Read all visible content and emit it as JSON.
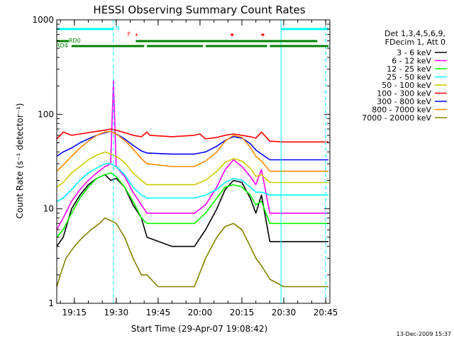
{
  "chart_data": {
    "type": "line",
    "title": "HESSI Observing Summary Count Rates",
    "xlabel": "Start Time (29-Apr-07 19:08:42)",
    "ylabel": "Count Rate (s⁻¹ detector⁻¹)",
    "yscale": "log",
    "ylim": [
      1,
      1000
    ],
    "xlim": [
      "19:08:42",
      "20:46:30"
    ],
    "x_ticks": [
      "19:15",
      "19:30",
      "19:45",
      "20:00",
      "20:15",
      "20:30",
      "20:45"
    ],
    "y_ticks": [
      "1",
      "10",
      "100",
      "1000"
    ],
    "grid": false,
    "legend_position": "right",
    "legend_header": [
      "Det 1,3,4,5,6,9,",
      "FDecim 1, Att 0"
    ],
    "series": [
      {
        "name": "3 - 6 keV",
        "color": "#000000",
        "x": [
          "19:08:42",
          "19:11",
          "19:14",
          "19:17",
          "19:20",
          "19:23",
          "19:26",
          "19:28",
          "19:30",
          "19:33",
          "19:36",
          "19:39",
          "19:41",
          "19:50",
          "19:58",
          "20:02",
          "20:06",
          "20:09",
          "20:12",
          "20:15",
          "20:18",
          "20:20",
          "20:22",
          "20:25",
          "20:30",
          "20:46"
        ],
        "values": [
          4,
          5,
          10,
          14,
          18,
          21,
          23,
          20,
          21,
          17,
          11,
          8,
          5,
          4,
          4,
          6,
          10,
          16,
          20,
          19,
          13,
          9,
          14,
          4.5,
          4.5,
          4.5
        ]
      },
      {
        "name": "6 - 12 keV",
        "color": "#ff00ff",
        "x": [
          "19:08:42",
          "19:11",
          "19:14",
          "19:17",
          "19:20",
          "19:23",
          "19:26",
          "19:28",
          "19:29",
          "19:30",
          "19:33",
          "19:36",
          "19:39",
          "19:41",
          "19:50",
          "19:58",
          "20:02",
          "20:06",
          "20:09",
          "20:12",
          "20:15",
          "20:18",
          "20:20",
          "20:22",
          "20:25",
          "20:30",
          "20:46"
        ],
        "values": [
          6,
          8,
          12,
          16,
          20,
          24,
          28,
          30,
          230,
          28,
          22,
          15,
          11,
          9,
          9,
          9,
          11,
          17,
          26,
          33,
          28,
          22,
          18,
          26,
          9,
          9,
          9
        ]
      },
      {
        "name": "12 - 25 keV",
        "color": "#00ff00",
        "x": [
          "19:08:42",
          "19:11",
          "19:14",
          "19:17",
          "19:20",
          "19:23",
          "19:26",
          "19:28",
          "19:30",
          "19:33",
          "19:36",
          "19:39",
          "19:41",
          "19:50",
          "19:58",
          "20:02",
          "20:06",
          "20:09",
          "20:12",
          "20:15",
          "20:18",
          "20:20",
          "20:22",
          "20:25",
          "20:30",
          "20:46"
        ],
        "values": [
          5,
          6,
          9,
          13,
          17,
          21,
          23,
          24,
          22,
          17,
          12,
          8,
          7,
          7,
          7,
          9,
          13,
          17,
          18,
          17,
          14,
          11,
          12,
          7,
          7,
          7
        ]
      },
      {
        "name": "25 - 50 keV",
        "color": "#00ffff",
        "x": [
          "19:08:42",
          "19:11",
          "19:14",
          "19:17",
          "19:20",
          "19:23",
          "19:26",
          "19:28",
          "19:30",
          "19:33",
          "19:36",
          "19:39",
          "19:41",
          "19:50",
          "19:58",
          "20:02",
          "20:06",
          "20:09",
          "20:12",
          "20:15",
          "20:18",
          "20:20",
          "20:22",
          "20:25",
          "20:30",
          "20:46"
        ],
        "values": [
          12,
          13,
          16,
          20,
          24,
          27,
          30,
          30,
          28,
          23,
          17,
          14,
          13,
          13,
          13,
          14,
          16,
          19,
          21,
          20,
          17,
          15,
          15,
          14,
          14,
          14
        ]
      },
      {
        "name": "50 - 100 keV",
        "color": "#cccc00",
        "x": [
          "19:08:42",
          "19:11",
          "19:14",
          "19:17",
          "19:20",
          "19:23",
          "19:26",
          "19:28",
          "19:30",
          "19:33",
          "19:36",
          "19:39",
          "19:41",
          "19:50",
          "19:58",
          "20:02",
          "20:06",
          "20:09",
          "20:12",
          "20:15",
          "20:18",
          "20:20",
          "20:22",
          "20:25",
          "20:30",
          "20:46"
        ],
        "values": [
          17,
          19,
          24,
          28,
          33,
          37,
          40,
          38,
          36,
          31,
          24,
          20,
          18,
          18,
          18,
          20,
          25,
          31,
          34,
          32,
          27,
          22,
          23,
          19,
          19,
          19
        ]
      },
      {
        "name": "100 - 300 keV",
        "color": "#ff0000",
        "x": [
          "19:08:42",
          "19:10",
          "19:11",
          "19:14",
          "19:17",
          "19:20",
          "19:23",
          "19:26",
          "19:28",
          "19:30",
          "19:33",
          "19:36",
          "19:39",
          "19:41",
          "19:42",
          "19:50",
          "19:58",
          "20:00",
          "20:02",
          "20:06",
          "20:09",
          "20:12",
          "20:15",
          "20:18",
          "20:20",
          "20:22",
          "20:25",
          "20:30",
          "20:46"
        ],
        "values": [
          55,
          60,
          65,
          60,
          62,
          64,
          66,
          68,
          70,
          68,
          64,
          60,
          58,
          65,
          60,
          58,
          60,
          62,
          55,
          57,
          60,
          62,
          60,
          58,
          56,
          65,
          52,
          51,
          51
        ]
      },
      {
        "name": "300 - 800 keV",
        "color": "#0000ff",
        "x": [
          "19:08:42",
          "19:11",
          "19:14",
          "19:17",
          "19:20",
          "19:23",
          "19:26",
          "19:28",
          "19:30",
          "19:33",
          "19:36",
          "19:39",
          "19:41",
          "19:50",
          "19:58",
          "20:02",
          "20:06",
          "20:09",
          "20:12",
          "20:15",
          "20:18",
          "20:20",
          "20:22",
          "20:25",
          "20:30",
          "20:46"
        ],
        "values": [
          36,
          40,
          44,
          50,
          55,
          60,
          64,
          66,
          62,
          55,
          47,
          41,
          39,
          38,
          38,
          40,
          46,
          53,
          58,
          56,
          49,
          42,
          38,
          33,
          33,
          33
        ]
      },
      {
        "name": "800 - 7000 keV",
        "color": "#ff8800",
        "x": [
          "19:08:42",
          "19:11",
          "19:14",
          "19:17",
          "19:20",
          "19:23",
          "19:26",
          "19:28",
          "19:30",
          "19:33",
          "19:36",
          "19:39",
          "19:41",
          "19:50",
          "19:58",
          "20:02",
          "20:06",
          "20:09",
          "20:12",
          "20:15",
          "20:18",
          "20:20",
          "20:22",
          "20:25",
          "20:30",
          "20:46"
        ],
        "values": [
          25,
          29,
          36,
          44,
          52,
          60,
          65,
          66,
          62,
          53,
          43,
          34,
          30,
          28,
          28,
          32,
          40,
          52,
          60,
          57,
          45,
          36,
          32,
          25,
          25,
          25
        ]
      },
      {
        "name": "7000 - 20000 keV",
        "color": "#808000",
        "x": [
          "19:08:42",
          "19:10",
          "19:12",
          "19:15",
          "19:18",
          "19:21",
          "19:24",
          "19:26",
          "19:28",
          "19:30",
          "19:33",
          "19:36",
          "19:39",
          "19:41",
          "19:45",
          "19:50",
          "19:58",
          "20:02",
          "20:06",
          "20:09",
          "20:12",
          "20:15",
          "20:18",
          "20:20",
          "20:22",
          "20:25",
          "20:30",
          "20:46"
        ],
        "values": [
          1.5,
          2,
          3,
          4,
          5,
          6,
          7,
          8,
          7.5,
          7,
          5,
          3,
          2,
          2,
          1.5,
          1.5,
          1.5,
          3,
          5,
          6.5,
          7,
          6,
          4,
          3,
          2.5,
          1.8,
          1.5,
          1.5
        ]
      }
    ],
    "annotations": {
      "N": {
        "label": "N",
        "color": "#00ffff",
        "segments": [
          [
            "19:08:42",
            "19:29"
          ],
          [
            "20:29",
            "20:46"
          ]
        ]
      },
      "F": {
        "label": "F",
        "color": "#ff0000",
        "segments": [
          [
            "19:37",
            "19:37:30"
          ],
          [
            "20:11",
            "20:12"
          ],
          [
            "20:22",
            "20:23"
          ]
        ]
      },
      "RD0": {
        "label": "RD0",
        "color": "#008000",
        "segments": [
          [
            "19:08:42",
            "19:13"
          ],
          [
            "19:37",
            "20:42"
          ]
        ]
      },
      "RD4": {
        "label": "RD4",
        "color": "#008000",
        "segments": [
          [
            "19:14",
            "19:40"
          ],
          [
            "19:41",
            "20:01"
          ],
          [
            "20:02",
            "20:24"
          ],
          [
            "20:25",
            "20:46"
          ]
        ]
      },
      "vlines": {
        "color": "#00ffff",
        "solid": [
          "19:08:42",
          "20:29"
        ],
        "dashed": [
          "19:29",
          "20:45"
        ]
      }
    }
  },
  "footer_date": "13-Dec-2009 15:37"
}
